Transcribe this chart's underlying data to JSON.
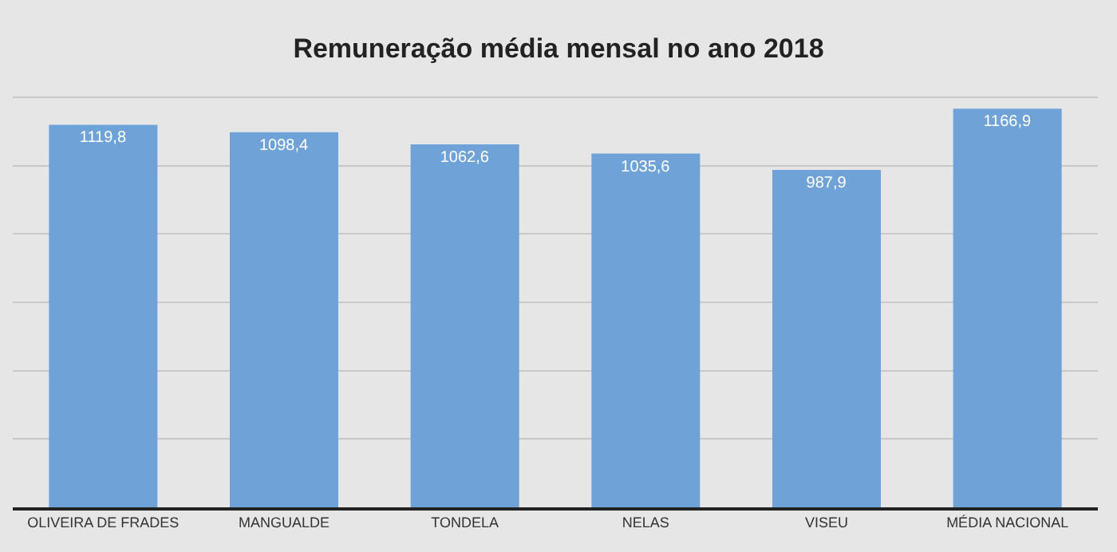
{
  "chart_data": {
    "type": "bar",
    "title": "Remuneração média mensal no ano 2018",
    "categories": [
      "OLIVEIRA DE FRADES",
      "MANGUALDE",
      "TONDELA",
      "NELAS",
      "VISEU",
      "MÉDIA NACIONAL"
    ],
    "values": [
      1119.8,
      1098.4,
      1062.6,
      1035.6,
      987.9,
      1166.9
    ],
    "value_labels": [
      "1119,8",
      "1098,4",
      "1062,6",
      "1035,6",
      "987,9",
      "1166,9"
    ],
    "color": "#6fa3d8",
    "grid": "y",
    "tick_labels": "x",
    "legend": false
  }
}
